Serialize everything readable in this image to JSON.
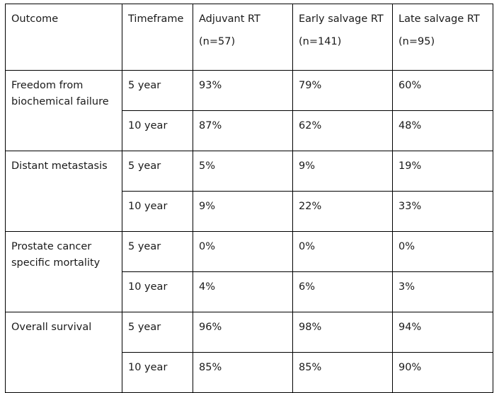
{
  "table": {
    "headers": [
      {
        "line1": "Outcome",
        "line2": ""
      },
      {
        "line1": "Timeframe",
        "line2": ""
      },
      {
        "line1": "Adjuvant RT",
        "line2": "(n=57)"
      },
      {
        "line1": "Early salvage RT",
        "line2": "(n=141)"
      },
      {
        "line1": "Late salvage RT",
        "line2": "(n=95)"
      }
    ],
    "groups": [
      {
        "outcome": "Freedom from biochemical failure",
        "rows": [
          {
            "timeframe": "5 year",
            "adjuvant": "93%",
            "early": "79%",
            "late": "60%"
          },
          {
            "timeframe": "10 year",
            "adjuvant": "87%",
            "early": "62%",
            "late": "48%"
          }
        ]
      },
      {
        "outcome": "Distant metastasis",
        "rows": [
          {
            "timeframe": "5 year",
            "adjuvant": "5%",
            "early": "9%",
            "late": "19%"
          },
          {
            "timeframe": "10 year",
            "adjuvant": "9%",
            "early": "22%",
            "late": "33%"
          }
        ]
      },
      {
        "outcome": "Prostate cancer specific mortality",
        "rows": [
          {
            "timeframe": "5 year",
            "adjuvant": "0%",
            "early": "0%",
            "late": "0%"
          },
          {
            "timeframe": "10 year",
            "adjuvant": "4%",
            "early": "6%",
            "late": "3%"
          }
        ]
      },
      {
        "outcome": "Overall survival",
        "rows": [
          {
            "timeframe": "5 year",
            "adjuvant": "96%",
            "early": "98%",
            "late": "94%"
          },
          {
            "timeframe": "10 year",
            "adjuvant": "85%",
            "early": "85%",
            "late": "90%"
          }
        ]
      }
    ]
  }
}
